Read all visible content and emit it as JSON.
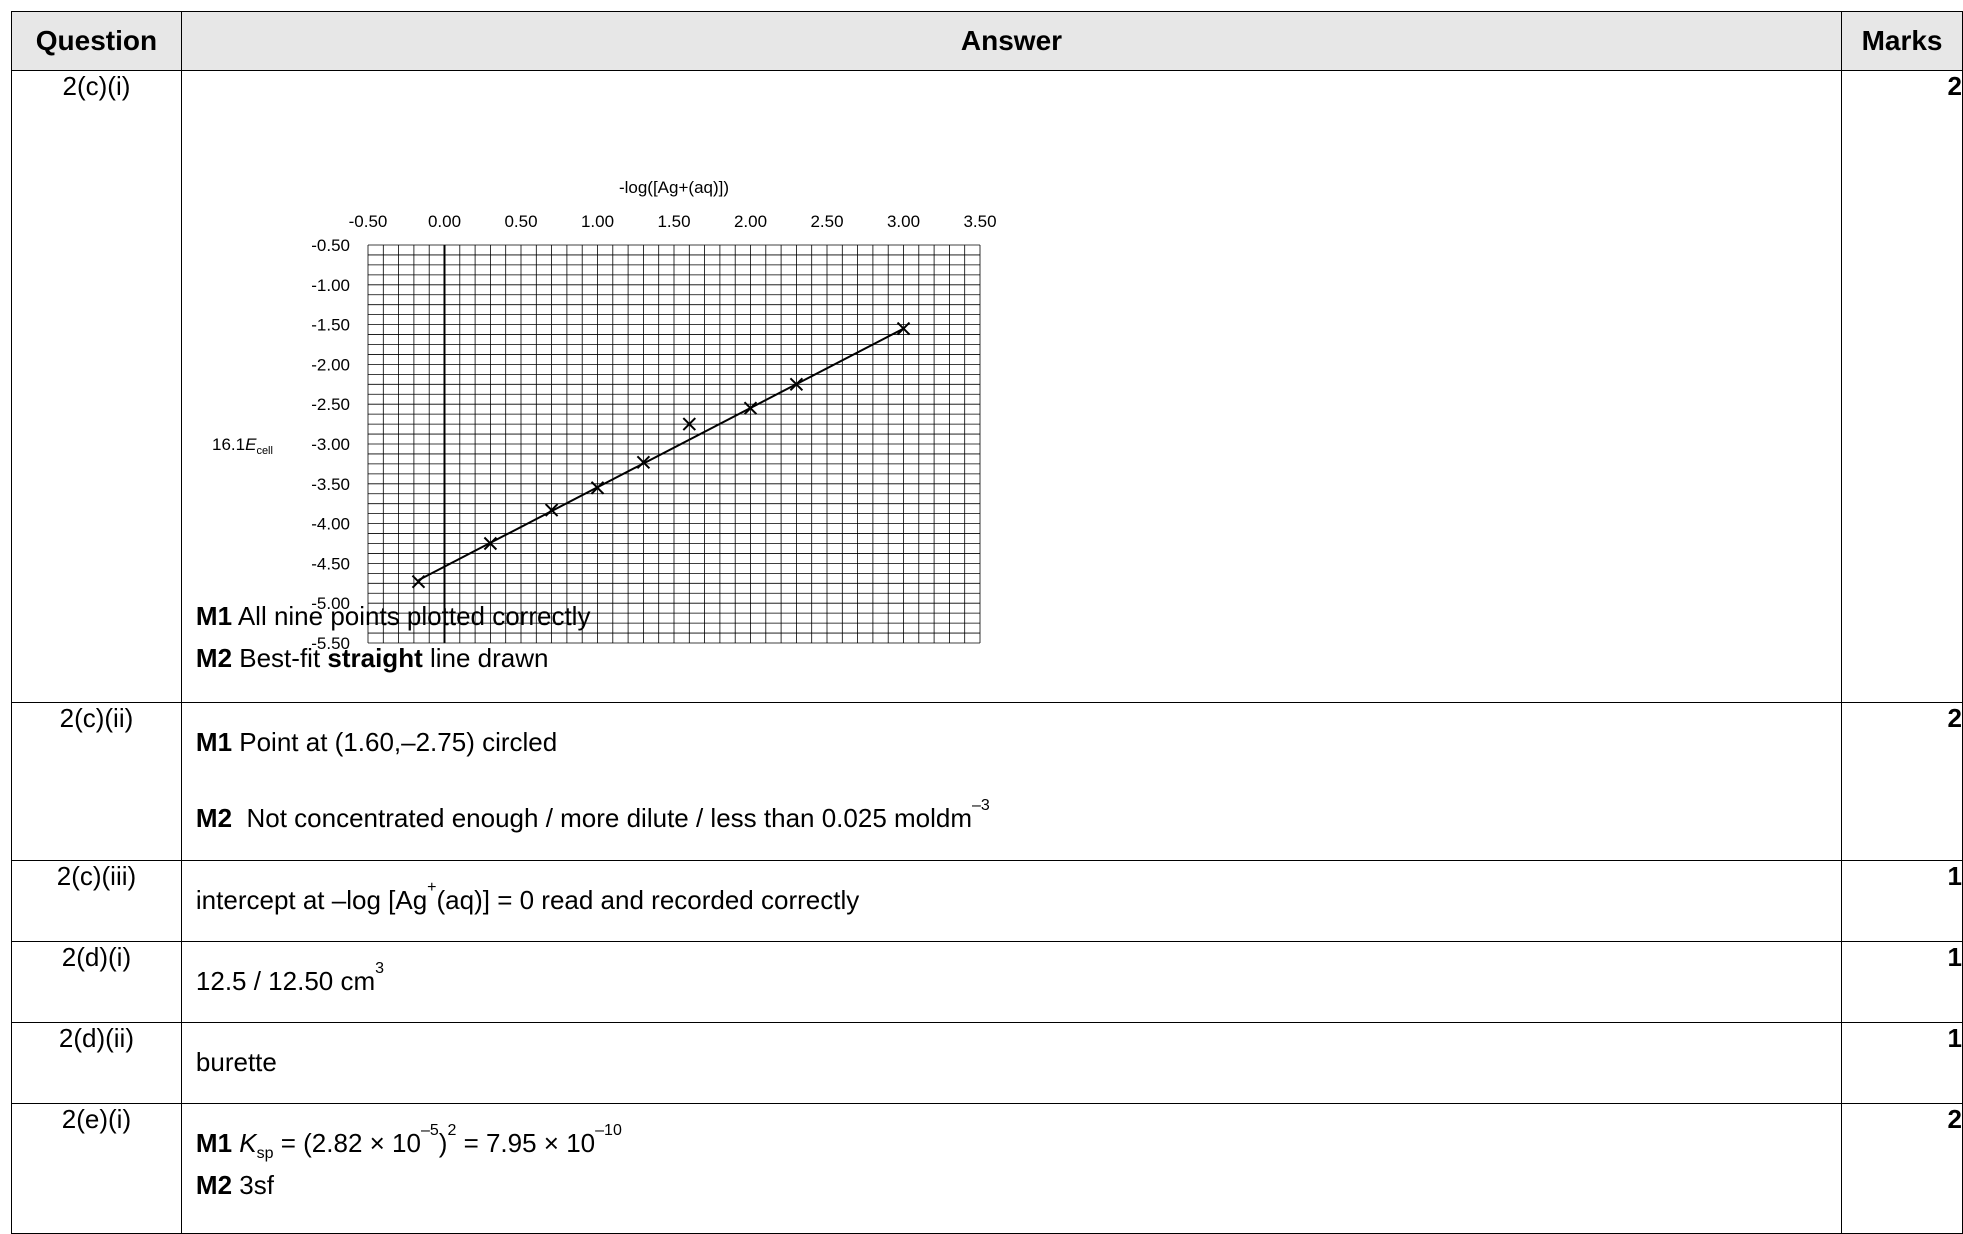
{
  "header": {
    "question": "Question",
    "answer": "Answer",
    "marks": "Marks"
  },
  "rows": [
    {
      "question": "2(c)(i)",
      "marks": "2",
      "lines": [
        {
          "bold": "M1",
          "text": " All nine points plotted correctly"
        },
        {
          "bold": "M2",
          "text": " Best-fit ",
          "bold2": "straight",
          "text2": " line drawn"
        }
      ]
    },
    {
      "question": "2(c)(ii)",
      "marks": "2",
      "m1_bold": "M1",
      "m1_text": " Point at (1.60,–2.75) circled",
      "m2_bold": "M2",
      "m2_text": "  Not concentrated enough / more dilute / less than 0.025 moldm",
      "m2_sup": "–3"
    },
    {
      "question": "2(c)(iii)",
      "marks": "1",
      "text_a": "intercept at –log [Ag",
      "sup": "+",
      "text_b": "(aq)] = 0 read and recorded correctly"
    },
    {
      "question": "2(d)(i)",
      "marks": "1",
      "text": "12.5 / 12.50 cm",
      "sup": "3"
    },
    {
      "question": "2(d)(ii)",
      "marks": "1",
      "text": "burette"
    },
    {
      "question": "2(e)(i)",
      "marks": "2",
      "m1_bold": "M1",
      "k": "K",
      "k_sub": "sp",
      "expr_a": " = (2.82 × 10",
      "exp1": "–5",
      "expr_b": ")",
      "exp2": "2",
      "expr_c": " = 7.95 × 10",
      "exp3": "–10",
      "m2_bold": "M2",
      "m2_text": " 3sf"
    }
  ],
  "chart_data": {
    "type": "scatter",
    "xlabel": "-log([Ag+(aq)])",
    "ylabel_prefix": "16.1",
    "ylabel_var": "E",
    "ylabel_sub": "cell",
    "xlim": [
      -0.5,
      3.5
    ],
    "ylim": [
      -5.5,
      -0.5
    ],
    "x_ticks": [
      "-0.50",
      "0.00",
      "0.50",
      "1.00",
      "1.50",
      "2.00",
      "2.50",
      "3.00",
      "3.50"
    ],
    "y_ticks": [
      "-0.50",
      "-1.00",
      "-1.50",
      "-2.00",
      "-2.50",
      "-3.00",
      "-3.50",
      "-4.00",
      "-4.50",
      "-5.00",
      "-5.50"
    ],
    "points": [
      [
        -0.17,
        -4.73
      ],
      [
        0.3,
        -4.25
      ],
      [
        0.7,
        -3.83
      ],
      [
        1.0,
        -3.55
      ],
      [
        1.3,
        -3.23
      ],
      [
        1.6,
        -2.75
      ],
      [
        2.0,
        -2.55
      ],
      [
        2.3,
        -2.25
      ],
      [
        3.0,
        -1.55
      ]
    ],
    "best_fit": [
      [
        -0.17,
        -4.71
      ],
      [
        3.0,
        -1.55
      ]
    ],
    "grid": true
  }
}
